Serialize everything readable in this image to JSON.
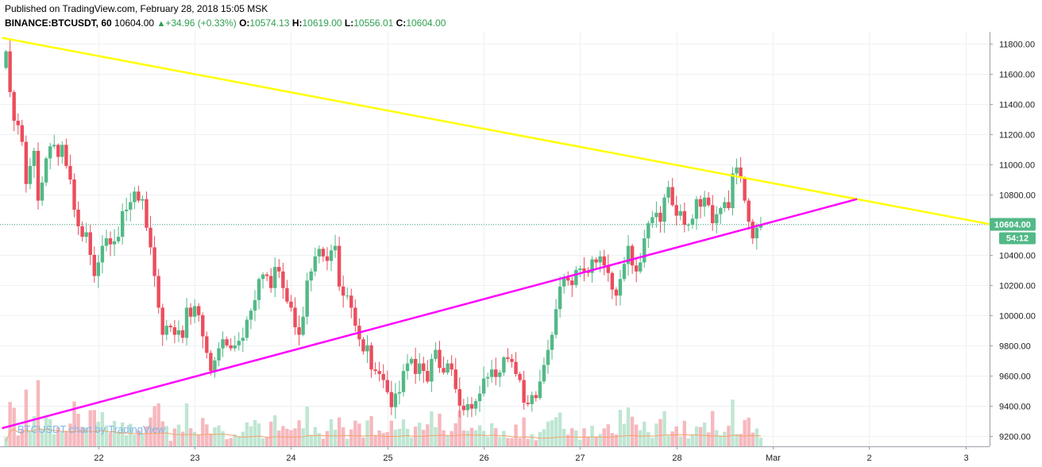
{
  "header": {
    "published": "Published on TradingView.com, February 28, 2018 15:05 MSK",
    "symbol": "BINANCE:BTCUSDT, 60",
    "last": "10604.00",
    "change": "+34.96 (+0.33%)",
    "o_label": "O:",
    "o_value": "10574.13",
    "h_label": "H:",
    "h_value": "10619.00",
    "l_label": "L:",
    "l_value": "10556.01",
    "c_label": "C:",
    "c_value": "10604.00"
  },
  "watermark": "BTCUSDT chart by TradingView",
  "colors": {
    "up": "#53b987",
    "down": "#eb4d5c",
    "vol_up": "#bfe6d2",
    "vol_down": "#f6b8be",
    "upper_trendline": "#ffff00",
    "lower_trendline": "#ff00ff",
    "ma": "#f5a26a",
    "price_line": "#53b987",
    "grid": "#eef0f3"
  },
  "chart_data": {
    "type": "candlestick",
    "y_ticks": [
      "11800.00",
      "11600.00",
      "11400.00",
      "11200.00",
      "11000.00",
      "10800.00",
      "10600.00",
      "10400.00",
      "10200.00",
      "10000.00",
      "9800.00",
      "9600.00",
      "9400.00",
      "9200.00"
    ],
    "y_tick_values": [
      11800,
      11600,
      11400,
      11200,
      11000,
      10800,
      10600,
      10400,
      10200,
      10000,
      9800,
      9600,
      9400,
      9200
    ],
    "ylim": [
      9130,
      11880
    ],
    "x_ticks": [
      "22",
      "23",
      "24",
      "25",
      "26",
      "27",
      "28",
      "Mar",
      "2",
      "3"
    ],
    "x_tick_hours": [
      23,
      47,
      71,
      95,
      119,
      143,
      167,
      191,
      215,
      239
    ],
    "xlim_hours": [
      -1.5,
      245
    ],
    "last_price_label": "10604.00",
    "last_price": 10604,
    "countdown_label": "54:12",
    "trendlines": [
      {
        "name": "upper",
        "color": "#ffff00",
        "from": {
          "hour": -1,
          "price": 11840
        },
        "to": {
          "hour": 245,
          "price": 10604
        }
      },
      {
        "name": "lower",
        "color": "#ff00ff",
        "from": {
          "hour": -1,
          "price": 9250
        },
        "to": {
          "hour": 212,
          "price": 10770
        }
      }
    ],
    "closes": [
      11750,
      11480,
      11290,
      11260,
      11150,
      10870,
      10990,
      11090,
      10760,
      10880,
      11040,
      11120,
      11130,
      11050,
      11130,
      10990,
      10900,
      10700,
      10590,
      10520,
      10550,
      10400,
      10260,
      10350,
      10460,
      10510,
      10470,
      10490,
      10520,
      10690,
      10700,
      10750,
      10820,
      10760,
      10770,
      10580,
      10450,
      10260,
      10050,
      9870,
      9930,
      9920,
      9870,
      9900,
      9850,
      10050,
      9990,
      10060,
      10000,
      9860,
      9750,
      9630,
      9700,
      9780,
      9840,
      9800,
      9780,
      9800,
      9830,
      9850,
      9970,
      10030,
      10100,
      10240,
      10270,
      10260,
      10180,
      10320,
      10290,
      10180,
      10090,
      10050,
      9920,
      9870,
      9990,
      10230,
      10290,
      10390,
      10440,
      10390,
      10360,
      10430,
      10460,
      10190,
      10130,
      10130,
      10050,
      9930,
      9840,
      9760,
      9800,
      9640,
      9630,
      9610,
      9570,
      9490,
      9390,
      9480,
      9490,
      9630,
      9680,
      9710,
      9610,
      9680,
      9630,
      9560,
      9710,
      9770,
      9650,
      9620,
      9680,
      9640,
      9510,
      9400,
      9370,
      9410,
      9380,
      9430,
      9480,
      9580,
      9590,
      9640,
      9590,
      9620,
      9720,
      9710,
      9690,
      9610,
      9570,
      9420,
      9410,
      9470,
      9450,
      9560,
      9670,
      9770,
      9870,
      10040,
      10190,
      10250,
      10230,
      10200,
      10300,
      10310,
      10290,
      10280,
      10370,
      10350,
      10390,
      10330,
      10280,
      10170,
      10130,
      10240,
      10340,
      10460,
      10330,
      10290,
      10350,
      10510,
      10610,
      10650,
      10680,
      10620,
      10780,
      10850,
      10730,
      10660,
      10690,
      10600,
      10600,
      10640,
      10770,
      10720,
      10780,
      10730,
      10610,
      10670,
      10710,
      10750,
      10710,
      10940,
      10980,
      10910,
      10760,
      10620,
      10510,
      10580,
      10604
    ]
  }
}
